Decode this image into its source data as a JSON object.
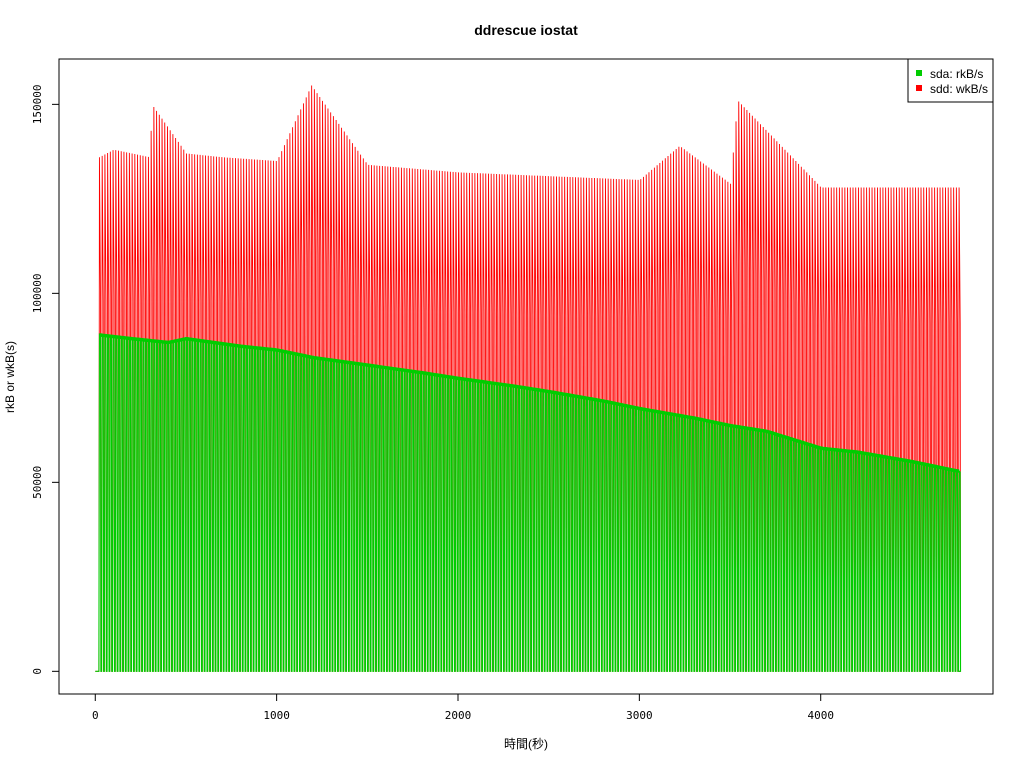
{
  "chart_data": {
    "type": "line",
    "title": "ddrescue iostat",
    "xlabel": "時間(秒)",
    "ylabel": "rkB or wkB(s)",
    "xlim": [
      -200,
      4950
    ],
    "ylim": [
      -6000,
      162000
    ],
    "x_ticks": [
      0,
      1000,
      2000,
      3000,
      4000
    ],
    "x_tick_labels": [
      "0",
      "1000",
      "2000",
      "3000",
      "4000"
    ],
    "y_ticks": [
      0,
      50000,
      100000,
      150000
    ],
    "y_tick_labels": [
      "0",
      "50000",
      "100000",
      "150000"
    ],
    "grid": false,
    "legend_position": "top-right",
    "series": [
      {
        "name": "sdd: wkB/s",
        "color": "#ff0000",
        "pattern": "oscillating bursts between 0 and peak, period about 15 s",
        "x": [
          20,
          100,
          200,
          300,
          310,
          500,
          700,
          1000,
          1190,
          1500,
          2000,
          2500,
          3000,
          3220,
          3500,
          3540,
          4000,
          4500,
          4750
        ],
        "peak": [
          136000,
          138000,
          137000,
          136000,
          150000,
          137000,
          136000,
          135000,
          155000,
          134000,
          132000,
          131000,
          130000,
          139000,
          129000,
          151000,
          128000,
          128000,
          128000
        ]
      },
      {
        "name": "sda: rkB/s",
        "color": "#00cc00",
        "pattern": "oscillating bursts between 0 and peak, period about 15 s",
        "x": [
          20,
          200,
          400,
          500,
          800,
          1000,
          1200,
          1500,
          1800,
          2000,
          2300,
          2500,
          2800,
          3000,
          3300,
          3500,
          3700,
          3800,
          4000,
          4200,
          4500,
          4750
        ],
        "peak": [
          89000,
          88000,
          87000,
          88000,
          86000,
          85000,
          83000,
          81000,
          79000,
          77500,
          75500,
          74000,
          71500,
          69500,
          67000,
          65000,
          63500,
          62000,
          59000,
          58000,
          55500,
          53000
        ]
      }
    ]
  }
}
